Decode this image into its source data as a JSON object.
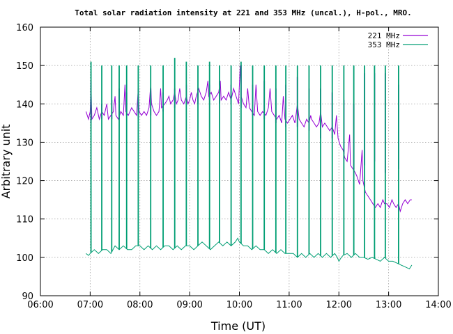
{
  "chart_data": {
    "type": "line",
    "title": "Total solar radiation intensity at 221 and 353 MHz (uncal.), H-pol., MRO.",
    "xlabel": "Time (UT)",
    "ylabel": "Arbitrary unit",
    "xlim": [
      "06:00",
      "14:00"
    ],
    "ylim": [
      90,
      160
    ],
    "x_ticks": [
      "06:00",
      "07:00",
      "08:00",
      "09:00",
      "10:00",
      "11:00",
      "12:00",
      "13:00",
      "14:00"
    ],
    "y_ticks": [
      90,
      100,
      110,
      120,
      130,
      140,
      150,
      160
    ],
    "grid": true,
    "legend_position": "top-right",
    "series": [
      {
        "name": "221 MHz",
        "color": "#9400d3",
        "points": [
          [
            "06:55",
            138
          ],
          [
            "06:58",
            136
          ],
          [
            "07:00",
            138
          ],
          [
            "07:01",
            146
          ],
          [
            "07:02",
            136
          ],
          [
            "07:05",
            137
          ],
          [
            "07:08",
            139
          ],
          [
            "07:11",
            136
          ],
          [
            "07:14",
            138
          ],
          [
            "07:17",
            137
          ],
          [
            "07:20",
            140
          ],
          [
            "07:22",
            136
          ],
          [
            "07:25",
            137
          ],
          [
            "07:28",
            138
          ],
          [
            "07:30",
            142
          ],
          [
            "07:31",
            137
          ],
          [
            "07:34",
            136
          ],
          [
            "07:37",
            138
          ],
          [
            "07:40",
            137
          ],
          [
            "07:42",
            145
          ],
          [
            "07:43",
            138
          ],
          [
            "07:46",
            137
          ],
          [
            "07:50",
            139
          ],
          [
            "07:53",
            138
          ],
          [
            "07:56",
            137
          ],
          [
            "07:58",
            144
          ],
          [
            "07:59",
            138
          ],
          [
            "08:02",
            137
          ],
          [
            "08:05",
            138
          ],
          [
            "08:08",
            137
          ],
          [
            "08:11",
            139
          ],
          [
            "08:13",
            145
          ],
          [
            "08:14",
            140
          ],
          [
            "08:17",
            138
          ],
          [
            "08:20",
            137
          ],
          [
            "08:23",
            138
          ],
          [
            "08:25",
            144
          ],
          [
            "08:26",
            139
          ],
          [
            "08:30",
            140
          ],
          [
            "08:33",
            141
          ],
          [
            "08:35",
            142
          ],
          [
            "08:37",
            140
          ],
          [
            "08:40",
            141
          ],
          [
            "08:42",
            143
          ],
          [
            "08:44",
            140
          ],
          [
            "08:46",
            141
          ],
          [
            "08:48",
            144
          ],
          [
            "08:50",
            141
          ],
          [
            "08:53",
            140
          ],
          [
            "08:56",
            142
          ],
          [
            "08:58",
            140
          ],
          [
            "09:00",
            141
          ],
          [
            "09:02",
            143
          ],
          [
            "09:04",
            141
          ],
          [
            "09:06",
            140
          ],
          [
            "09:08",
            142
          ],
          [
            "09:11",
            144
          ],
          [
            "09:14",
            142
          ],
          [
            "09:17",
            141
          ],
          [
            "09:20",
            143
          ],
          [
            "09:22",
            146
          ],
          [
            "09:23",
            142
          ],
          [
            "09:26",
            143
          ],
          [
            "09:29",
            141
          ],
          [
            "09:32",
            142
          ],
          [
            "09:35",
            143
          ],
          [
            "09:37",
            146
          ],
          [
            "09:38",
            141
          ],
          [
            "09:41",
            142
          ],
          [
            "09:44",
            141
          ],
          [
            "09:47",
            143
          ],
          [
            "09:50",
            141
          ],
          [
            "09:53",
            144
          ],
          [
            "09:56",
            142
          ],
          [
            "09:59",
            140
          ],
          [
            "10:01",
            150
          ],
          [
            "10:02",
            142
          ],
          [
            "10:05",
            140
          ],
          [
            "10:08",
            139
          ],
          [
            "10:10",
            144
          ],
          [
            "10:12",
            139
          ],
          [
            "10:15",
            138
          ],
          [
            "10:18",
            137
          ],
          [
            "10:20",
            145
          ],
          [
            "10:22",
            138
          ],
          [
            "10:25",
            137
          ],
          [
            "10:28",
            138
          ],
          [
            "10:32",
            137
          ],
          [
            "10:35",
            139
          ],
          [
            "10:37",
            144
          ],
          [
            "10:39",
            138
          ],
          [
            "10:42",
            137
          ],
          [
            "10:45",
            136
          ],
          [
            "10:48",
            137
          ],
          [
            "10:51",
            135
          ],
          [
            "10:53",
            142
          ],
          [
            "10:55",
            136
          ],
          [
            "10:58",
            135
          ],
          [
            "11:01",
            136
          ],
          [
            "11:04",
            137
          ],
          [
            "11:07",
            135
          ],
          [
            "11:10",
            140
          ],
          [
            "11:12",
            136
          ],
          [
            "11:15",
            135
          ],
          [
            "11:18",
            134
          ],
          [
            "11:21",
            136
          ],
          [
            "11:24",
            135
          ],
          [
            "11:26",
            137
          ],
          [
            "11:27",
            136
          ],
          [
            "11:30",
            135
          ],
          [
            "11:33",
            134
          ],
          [
            "11:36",
            135
          ],
          [
            "11:38",
            138
          ],
          [
            "11:40",
            134
          ],
          [
            "11:43",
            135
          ],
          [
            "11:46",
            134
          ],
          [
            "11:49",
            133
          ],
          [
            "11:52",
            134
          ],
          [
            "11:55",
            132
          ],
          [
            "11:57",
            137
          ],
          [
            "11:59",
            131
          ],
          [
            "12:02",
            129
          ],
          [
            "12:05",
            128
          ],
          [
            "12:07",
            126
          ],
          [
            "12:10",
            125
          ],
          [
            "12:13",
            132
          ],
          [
            "12:14",
            124
          ],
          [
            "12:17",
            123
          ],
          [
            "12:20",
            122
          ],
          [
            "12:22",
            121
          ],
          [
            "12:25",
            119
          ],
          [
            "12:28",
            128
          ],
          [
            "12:29",
            120
          ],
          [
            "12:32",
            117
          ],
          [
            "12:35",
            116
          ],
          [
            "12:38",
            115
          ],
          [
            "12:41",
            114
          ],
          [
            "12:44",
            113
          ],
          [
            "12:47",
            114
          ],
          [
            "12:50",
            113
          ],
          [
            "12:53",
            115
          ],
          [
            "12:55",
            114
          ],
          [
            "12:58",
            114
          ],
          [
            "13:01",
            113
          ],
          [
            "13:04",
            115
          ],
          [
            "13:06",
            114
          ],
          [
            "13:09",
            113
          ],
          [
            "13:12",
            114
          ],
          [
            "13:14",
            112
          ],
          [
            "13:17",
            114
          ],
          [
            "13:20",
            115
          ],
          [
            "13:23",
            114
          ],
          [
            "13:26",
            115
          ],
          [
            "13:28",
            115
          ]
        ],
        "spikes": [
          [
            "07:01",
            146,
            135
          ],
          [
            "07:14",
            140,
            136
          ],
          [
            "07:26",
            141,
            136
          ],
          [
            "07:35",
            144,
            136
          ],
          [
            "07:44",
            143,
            137
          ],
          [
            "07:58",
            144,
            136
          ],
          [
            "08:13",
            144,
            137
          ],
          [
            "08:28",
            143,
            138
          ],
          [
            "08:42",
            144,
            139
          ],
          [
            "08:56",
            145,
            140
          ],
          [
            "09:10",
            144,
            140
          ],
          [
            "09:24",
            145,
            141
          ],
          [
            "09:36",
            144,
            140
          ],
          [
            "09:50",
            145,
            140
          ],
          [
            "10:02",
            150,
            139
          ],
          [
            "10:16",
            145,
            137
          ],
          [
            "10:30",
            146,
            136
          ],
          [
            "10:44",
            144,
            135
          ],
          [
            "10:56",
            145,
            134
          ],
          [
            "11:10",
            147,
            134
          ],
          [
            "11:24",
            144,
            133
          ],
          [
            "11:38",
            144,
            131
          ],
          [
            "11:52",
            143,
            131
          ],
          [
            "12:06",
            141,
            127
          ],
          [
            "12:18",
            140,
            123
          ],
          [
            "12:31",
            148,
            124
          ],
          [
            "12:43",
            148,
            125
          ],
          [
            "12:56",
            148,
            122
          ],
          [
            "13:12",
            145,
            123
          ]
        ]
      },
      {
        "name": "353 MHz",
        "color": "#009e73",
        "points": [
          [
            "06:55",
            101
          ],
          [
            "06:58",
            100.5
          ],
          [
            "07:00",
            101
          ],
          [
            "07:05",
            102
          ],
          [
            "07:10",
            101
          ],
          [
            "07:15",
            102
          ],
          [
            "07:20",
            102
          ],
          [
            "07:25",
            101
          ],
          [
            "07:30",
            103
          ],
          [
            "07:35",
            102
          ],
          [
            "07:40",
            103
          ],
          [
            "07:45",
            102
          ],
          [
            "07:50",
            102
          ],
          [
            "07:55",
            103
          ],
          [
            "08:00",
            103
          ],
          [
            "08:05",
            102
          ],
          [
            "08:10",
            103
          ],
          [
            "08:15",
            102
          ],
          [
            "08:20",
            103
          ],
          [
            "08:25",
            102
          ],
          [
            "08:30",
            103
          ],
          [
            "08:35",
            103
          ],
          [
            "08:40",
            102
          ],
          [
            "08:45",
            103
          ],
          [
            "08:50",
            102
          ],
          [
            "08:55",
            103
          ],
          [
            "09:00",
            103
          ],
          [
            "09:05",
            102
          ],
          [
            "09:10",
            103
          ],
          [
            "09:15",
            104
          ],
          [
            "09:20",
            103
          ],
          [
            "09:25",
            102
          ],
          [
            "09:30",
            103
          ],
          [
            "09:35",
            104
          ],
          [
            "09:40",
            103
          ],
          [
            "09:45",
            104
          ],
          [
            "09:50",
            103
          ],
          [
            "09:55",
            104
          ],
          [
            "09:58",
            105
          ],
          [
            "10:00",
            104
          ],
          [
            "10:05",
            103
          ],
          [
            "10:10",
            103
          ],
          [
            "10:15",
            102
          ],
          [
            "10:20",
            103
          ],
          [
            "10:25",
            102
          ],
          [
            "10:30",
            102
          ],
          [
            "10:35",
            101
          ],
          [
            "10:40",
            102
          ],
          [
            "10:45",
            101
          ],
          [
            "10:50",
            102
          ],
          [
            "10:55",
            101
          ],
          [
            "11:00",
            101
          ],
          [
            "11:05",
            101
          ],
          [
            "11:10",
            100
          ],
          [
            "11:15",
            101
          ],
          [
            "11:20",
            100
          ],
          [
            "11:25",
            101
          ],
          [
            "11:30",
            100
          ],
          [
            "11:35",
            101
          ],
          [
            "11:40",
            100
          ],
          [
            "11:45",
            101
          ],
          [
            "11:50",
            100
          ],
          [
            "11:55",
            101
          ],
          [
            "11:58",
            100
          ],
          [
            "12:00",
            99
          ],
          [
            "12:03",
            100
          ],
          [
            "12:05",
            100.5
          ],
          [
            "12:10",
            101
          ],
          [
            "12:15",
            100
          ],
          [
            "12:20",
            101
          ],
          [
            "12:25",
            100
          ],
          [
            "12:30",
            100
          ],
          [
            "12:35",
            99.5
          ],
          [
            "12:40",
            100
          ],
          [
            "12:45",
            99.5
          ],
          [
            "12:50",
            99
          ],
          [
            "12:55",
            100
          ],
          [
            "13:00",
            99
          ],
          [
            "13:05",
            99
          ],
          [
            "13:10",
            98.5
          ],
          [
            "13:15",
            98
          ],
          [
            "13:20",
            97.5
          ],
          [
            "13:25",
            97
          ],
          [
            "13:28",
            98
          ]
        ],
        "spikes": [
          [
            "07:01",
            151
          ],
          [
            "07:14",
            150
          ],
          [
            "07:26",
            150
          ],
          [
            "07:35",
            150
          ],
          [
            "07:44",
            150
          ],
          [
            "07:58",
            150
          ],
          [
            "08:13",
            150
          ],
          [
            "08:28",
            150
          ],
          [
            "08:42",
            152
          ],
          [
            "08:56",
            151
          ],
          [
            "09:10",
            150
          ],
          [
            "09:24",
            151
          ],
          [
            "09:36",
            150
          ],
          [
            "09:50",
            150
          ],
          [
            "10:02",
            151
          ],
          [
            "10:16",
            150
          ],
          [
            "10:30",
            150
          ],
          [
            "10:44",
            150
          ],
          [
            "10:56",
            150
          ],
          [
            "11:10",
            150
          ],
          [
            "11:24",
            150
          ],
          [
            "11:38",
            150
          ],
          [
            "11:52",
            150
          ],
          [
            "12:06",
            150
          ],
          [
            "12:18",
            150
          ],
          [
            "12:31",
            150
          ],
          [
            "12:43",
            150
          ],
          [
            "12:56",
            150
          ],
          [
            "13:12",
            150
          ]
        ]
      }
    ]
  }
}
